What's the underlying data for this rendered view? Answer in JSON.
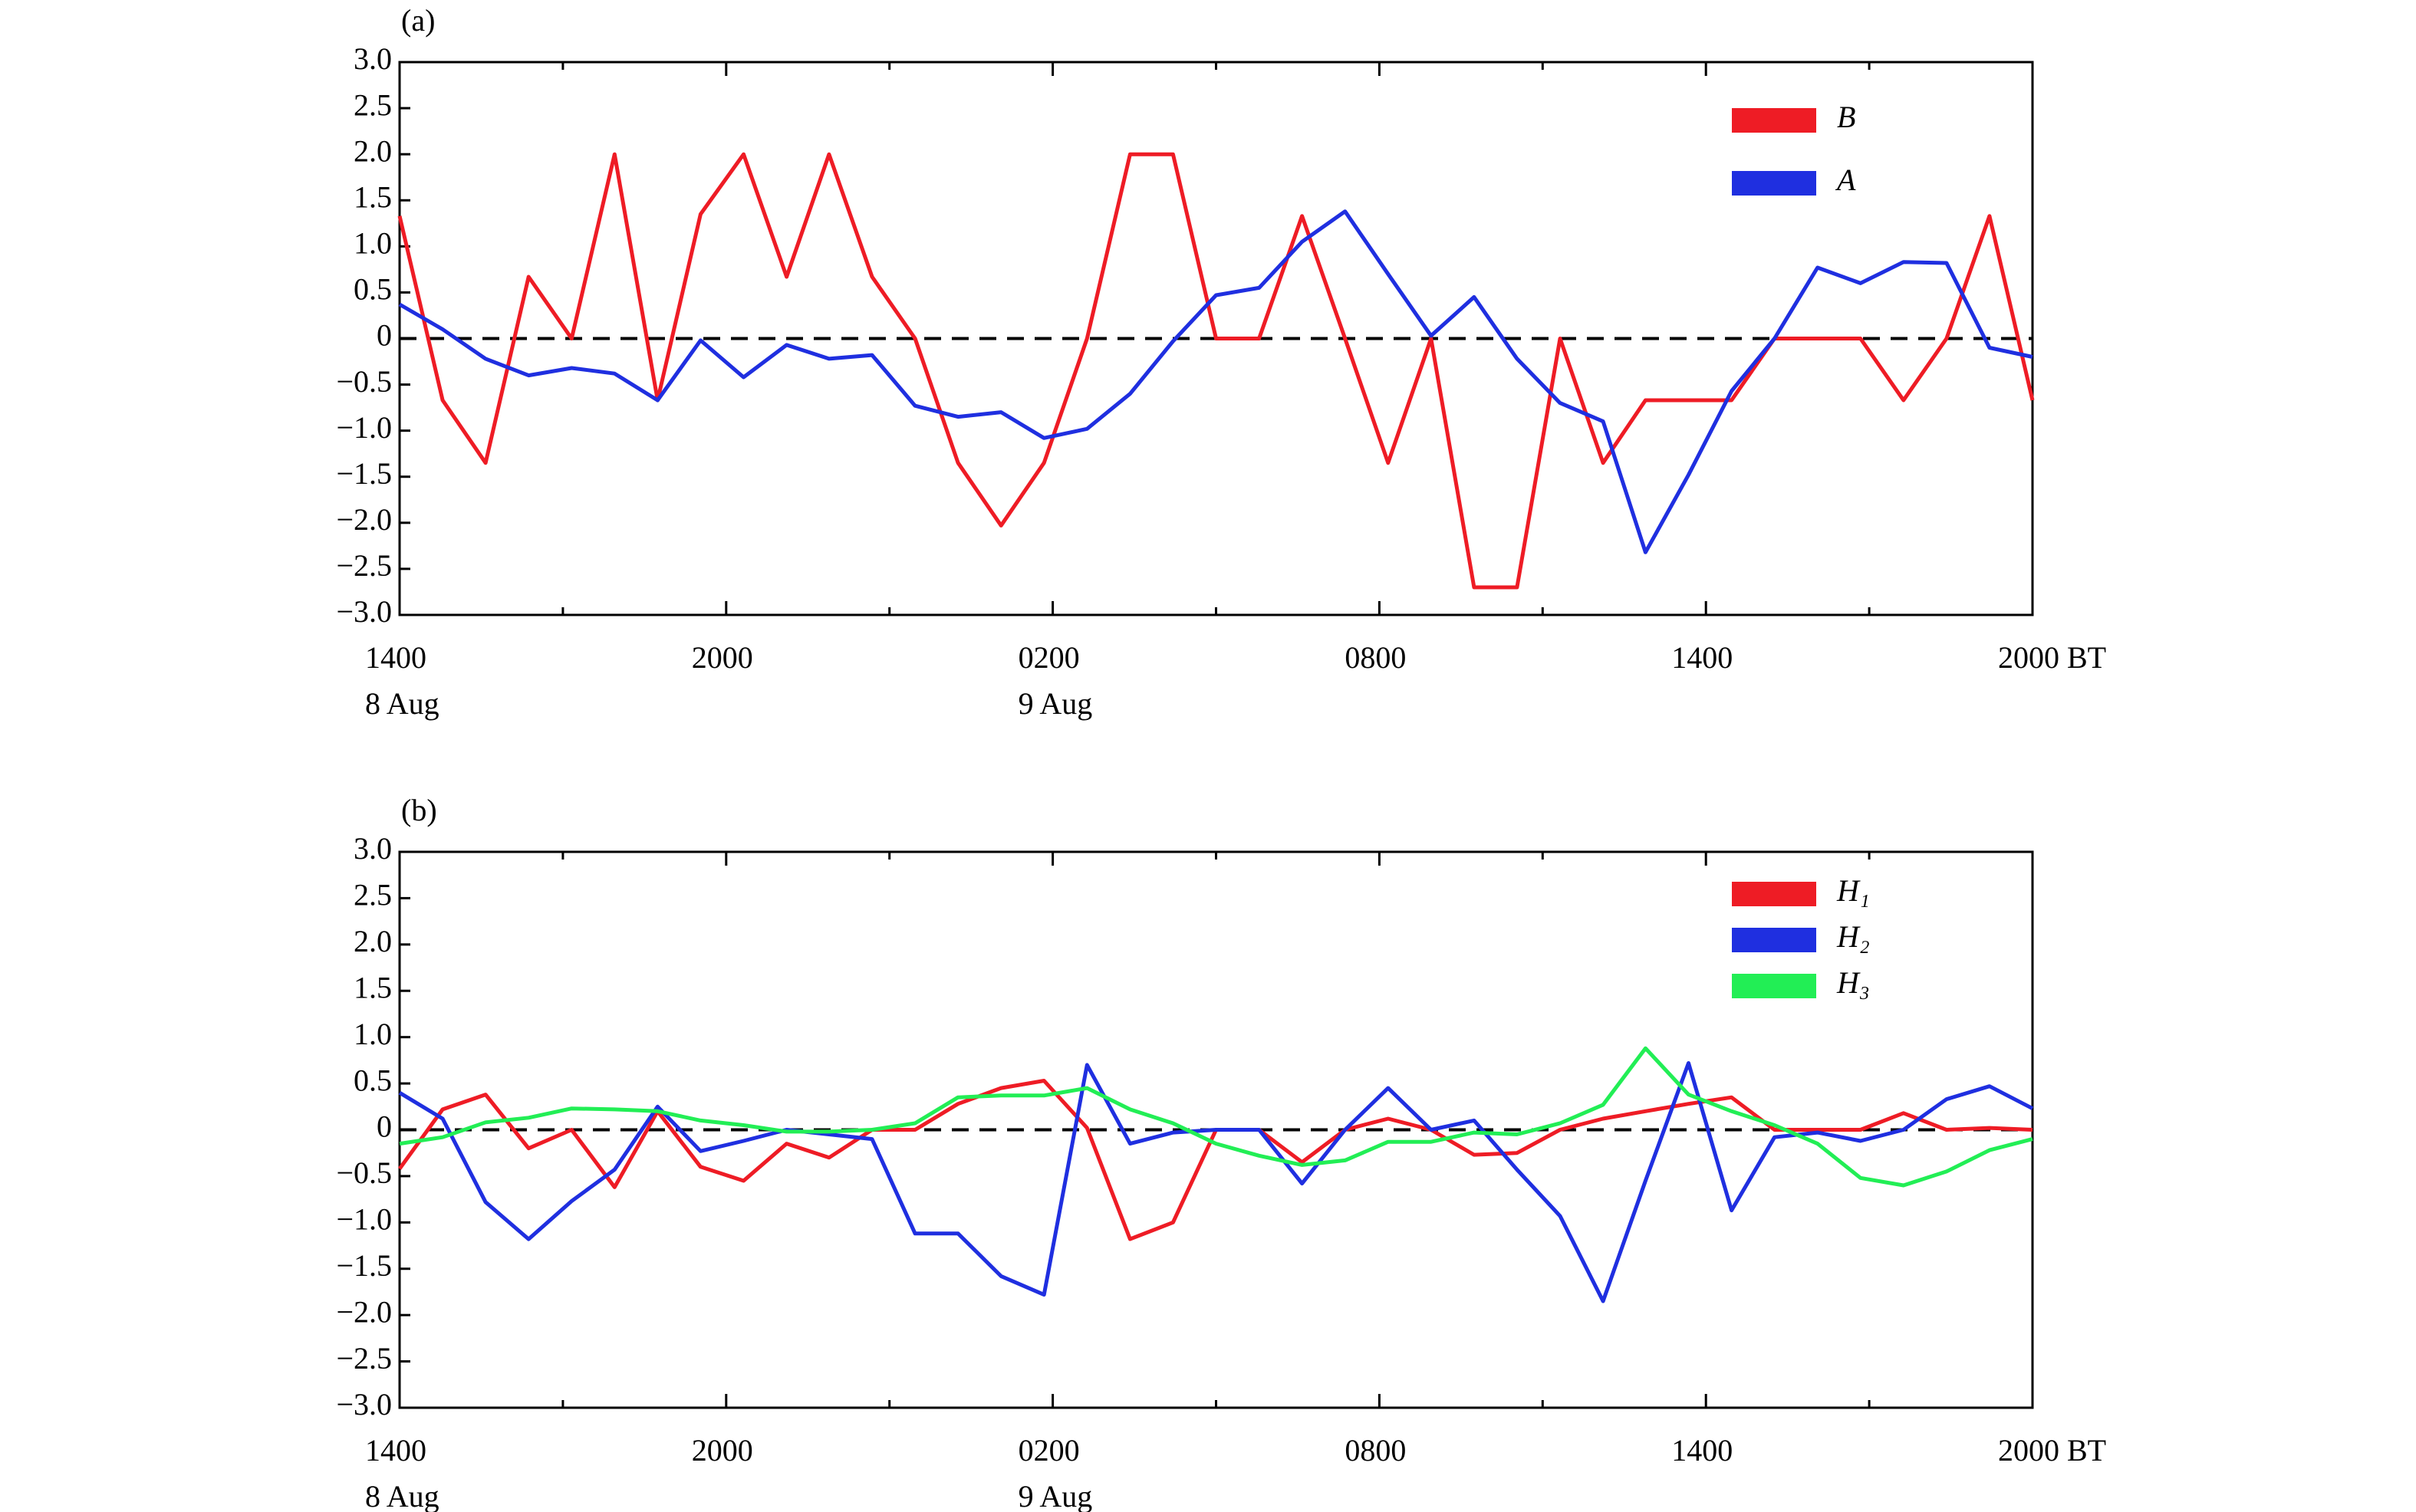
{
  "chart_data": [
    {
      "type": "line",
      "label": "(a)",
      "xlim": [
        0,
        30
      ],
      "ylim": [
        -3,
        3
      ],
      "yticks": [
        {
          "value": -3,
          "label": "−3.0"
        },
        {
          "value": -2.5,
          "label": "−2.5"
        },
        {
          "value": -2,
          "label": "−2.0"
        },
        {
          "value": -1.5,
          "label": "−1.5"
        },
        {
          "value": -1,
          "label": "−1.0"
        },
        {
          "value": -0.5,
          "label": "−0.5"
        },
        0,
        {
          "value": 0.5,
          "label": "0.5"
        },
        {
          "value": 1,
          "label": "1.0"
        },
        {
          "value": 1.5,
          "label": "1.5"
        },
        {
          "value": 2,
          "label": "2.0"
        },
        {
          "value": 2.5,
          "label": "2.5"
        },
        {
          "value": 3,
          "label": "3.0"
        }
      ],
      "xticks": [
        {
          "value": 0,
          "label": "1400"
        },
        {
          "value": 6,
          "label": "2000"
        },
        {
          "value": 12,
          "label": "0200"
        },
        {
          "value": 18,
          "label": "0800"
        },
        {
          "value": 24,
          "label": "1400"
        },
        {
          "value": 30,
          "label": "2000 BT"
        }
      ],
      "xminor": [
        3,
        9,
        15,
        21,
        27
      ],
      "xtick_dates": [
        {
          "value": 0,
          "label": "8 Aug"
        },
        {
          "value": 12,
          "label": "9 Aug"
        }
      ],
      "hline": 0,
      "legend": "upper right",
      "x": [
        0,
        0.79,
        1.58,
        2.37,
        3.16,
        3.95,
        4.74,
        5.53,
        6.32,
        7.11,
        7.89,
        8.68,
        9.47,
        10.26,
        11.05,
        11.84,
        12.63,
        13.42,
        14.21,
        15,
        15.79,
        16.58,
        17.37,
        18.16,
        18.95,
        19.74,
        20.53,
        21.32,
        22.11,
        22.89,
        23.68,
        24.47,
        25.26,
        26.05,
        26.84,
        27.63,
        28.42,
        29.21,
        30
      ],
      "series": [
        {
          "name": "B",
          "color": "#ee1c25",
          "values": [
            1.33,
            -0.67,
            -1.35,
            0.67,
            0,
            2.0,
            -0.67,
            1.35,
            2.0,
            0.67,
            2.0,
            0.67,
            0,
            -1.35,
            -2.03,
            -1.35,
            0,
            2.0,
            2.0,
            0,
            0,
            1.33,
            0,
            -1.35,
            0,
            -2.7,
            -2.7,
            0,
            -1.35,
            -0.67,
            -0.67,
            -0.67,
            0,
            0,
            0,
            -0.67,
            0,
            1.33,
            -0.67
          ]
        },
        {
          "name": "A",
          "color": "#1f2fe0",
          "values": [
            0.37,
            0.1,
            -0.22,
            -0.4,
            -0.32,
            -0.38,
            -0.67,
            -0.02,
            -0.42,
            -0.07,
            -0.22,
            -0.18,
            -0.73,
            -0.85,
            -0.8,
            -1.08,
            -0.98,
            -0.6,
            -0.03,
            0.47,
            0.55,
            1.05,
            1.38,
            0.7,
            0.03,
            0.45,
            -0.22,
            -0.7,
            -0.9,
            -2.32,
            -1.48,
            -0.57,
            0,
            0.77,
            0.6,
            0.83,
            0.82,
            -0.1,
            -0.2
          ]
        }
      ]
    },
    {
      "type": "line",
      "label": "(b)",
      "xlim": [
        0,
        30
      ],
      "ylim": [
        -3,
        3
      ],
      "yticks": [
        {
          "value": -3,
          "label": "−3.0"
        },
        {
          "value": -2.5,
          "label": "−2.5"
        },
        {
          "value": -2,
          "label": "−2.0"
        },
        {
          "value": -1.5,
          "label": "−1.5"
        },
        {
          "value": -1,
          "label": "−1.0"
        },
        {
          "value": -0.5,
          "label": "−0.5"
        },
        0,
        {
          "value": 0.5,
          "label": "0.5"
        },
        {
          "value": 1,
          "label": "1.0"
        },
        {
          "value": 1.5,
          "label": "1.5"
        },
        {
          "value": 2,
          "label": "2.0"
        },
        {
          "value": 2.5,
          "label": "2.5"
        },
        {
          "value": 3,
          "label": "3.0"
        }
      ],
      "xticks": [
        {
          "value": 0,
          "label": "1400"
        },
        {
          "value": 6,
          "label": "2000"
        },
        {
          "value": 12,
          "label": "0200"
        },
        {
          "value": 18,
          "label": "0800"
        },
        {
          "value": 24,
          "label": "1400"
        },
        {
          "value": 30,
          "label": "2000 BT"
        }
      ],
      "xminor": [
        3,
        9,
        15,
        21,
        27
      ],
      "xtick_dates": [
        {
          "value": 0,
          "label": "8 Aug"
        },
        {
          "value": 12,
          "label": "9 Aug"
        }
      ],
      "hline": 0,
      "legend": "upper right",
      "x": [
        0,
        0.79,
        1.58,
        2.37,
        3.16,
        3.95,
        4.74,
        5.53,
        6.32,
        7.11,
        7.89,
        8.68,
        9.47,
        10.26,
        11.05,
        11.84,
        12.63,
        13.42,
        14.21,
        15,
        15.79,
        16.58,
        17.37,
        18.16,
        18.95,
        19.74,
        20.53,
        21.32,
        22.11,
        22.89,
        23.68,
        24.47,
        25.26,
        26.05,
        26.84,
        27.63,
        28.42,
        29.21,
        30
      ],
      "series": [
        {
          "name": "H₁",
          "color": "#ee1c25",
          "values": [
            -0.42,
            0.22,
            0.38,
            -0.2,
            0,
            -0.62,
            0.2,
            -0.4,
            -0.55,
            -0.15,
            -0.3,
            0,
            0,
            0.28,
            0.45,
            0.53,
            0.02,
            -1.18,
            -1.0,
            0,
            0,
            -0.35,
            0,
            0.12,
            0,
            -0.27,
            -0.25,
            0,
            0.12,
            0.2,
            0.28,
            0.35,
            0,
            0,
            0,
            0.18,
            0,
            0.02,
            0
          ]
        },
        {
          "name": "H₂",
          "color": "#1f2fe0",
          "values": [
            0.4,
            0.12,
            -0.78,
            -1.18,
            -0.77,
            -0.43,
            0.25,
            -0.23,
            -0.12,
            0,
            -0.05,
            -0.1,
            -1.12,
            -1.12,
            -1.58,
            -1.78,
            0.7,
            -0.15,
            -0.03,
            0,
            0,
            -0.58,
            0,
            0.45,
            0,
            0.1,
            -0.43,
            -0.93,
            -1.85,
            -0.55,
            0.72,
            -0.87,
            -0.08,
            -0.03,
            -0.12,
            0,
            0.33,
            0.47,
            0.23
          ]
        },
        {
          "name": "H₃",
          "color": "#22ee55",
          "values": [
            -0.15,
            -0.08,
            0.08,
            0.13,
            0.23,
            0.22,
            0.2,
            0.1,
            0.05,
            -0.02,
            -0.02,
            0,
            0.07,
            0.35,
            0.37,
            0.37,
            0.45,
            0.22,
            0.07,
            -0.15,
            -0.28,
            -0.38,
            -0.33,
            -0.13,
            -0.13,
            -0.03,
            -0.05,
            0.07,
            0.27,
            0.88,
            0.38,
            0.2,
            0.05,
            -0.15,
            -0.52,
            -0.6,
            -0.45,
            -0.22,
            -0.1
          ]
        }
      ]
    }
  ]
}
